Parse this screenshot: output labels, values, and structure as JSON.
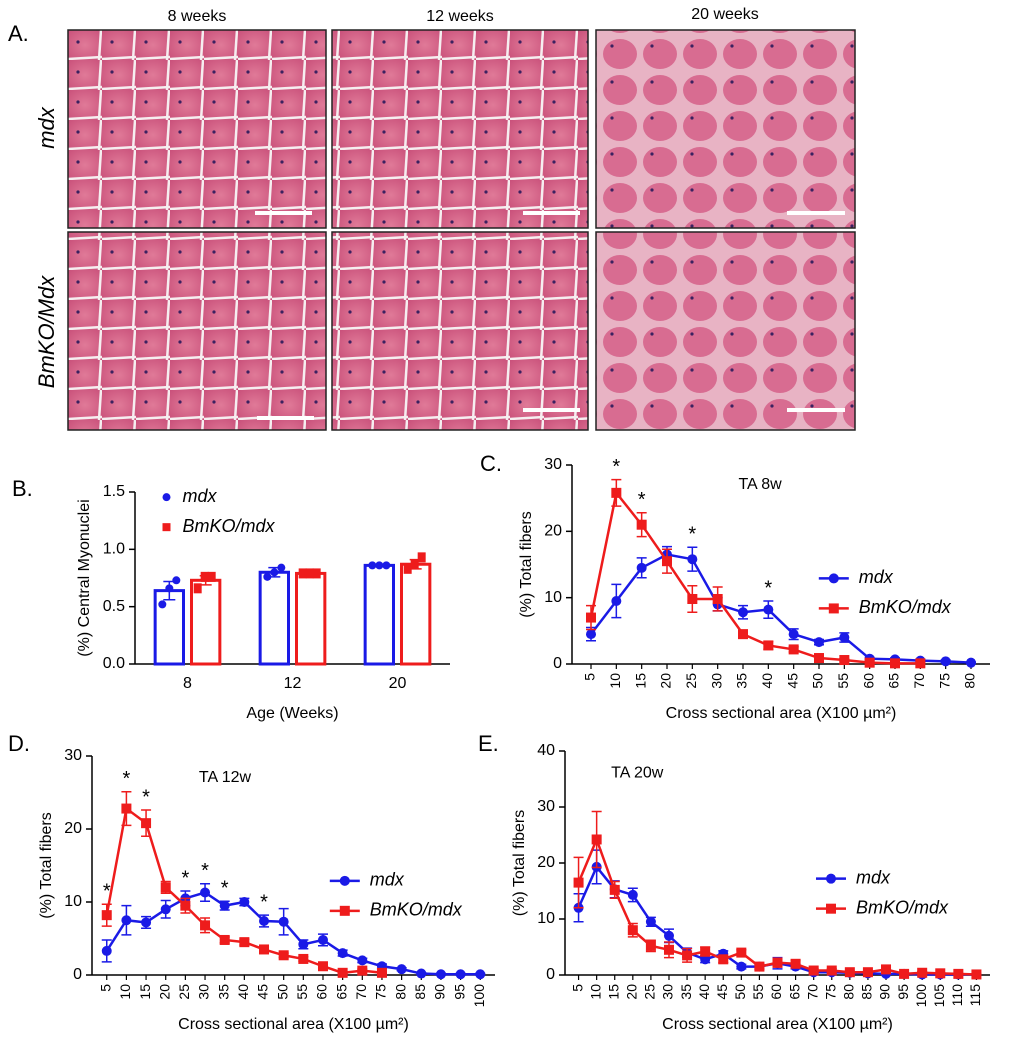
{
  "panel_a": {
    "label": "A.",
    "columns": [
      "8 weeks",
      "12 weeks",
      "20 weeks"
    ],
    "rows": [
      "mdx",
      "BmKO/Mdx"
    ]
  },
  "chart_data": [
    {
      "label": "B.",
      "type": "bar",
      "categories": [
        "8",
        "12",
        "20"
      ],
      "xlabel": "Age (Weeks)",
      "ylabel": "(%) Central Myonuclei",
      "ylim": [
        0,
        1.5
      ],
      "yticks": [
        {
          "value": 0,
          "label": "0.0"
        },
        0.5,
        {
          "value": 1,
          "label": "1.0"
        },
        1.5
      ],
      "legend": "upper left",
      "series": [
        {
          "name": "mdx",
          "color": "#1a1ae6",
          "marker": "circle",
          "values": [
            0.64,
            0.8,
            0.86
          ],
          "errors": [
            0.08,
            0.04,
            0.01
          ],
          "points": [
            [
              0.52,
              0.66,
              0.73
            ],
            [
              0.76,
              0.8,
              0.84
            ],
            [
              0.86,
              0.86,
              0.86
            ]
          ]
        },
        {
          "name": "BmKO/mdx",
          "color": "#ee1c1c",
          "marker": "square",
          "values": [
            0.73,
            0.79,
            0.87
          ],
          "errors": [
            0.04,
            0.01,
            0.04
          ],
          "points": [
            [
              0.66,
              0.76,
              0.76
            ],
            [
              0.79,
              0.79,
              0.79
            ],
            [
              0.83,
              0.87,
              0.93
            ]
          ]
        }
      ]
    },
    {
      "label": "C.",
      "type": "line",
      "title": "TA 8w",
      "xlabel": "Cross sectional area (X100 µm²)",
      "ylabel": "(%) Total fibers",
      "categories": [
        "5",
        "10",
        "15",
        "20",
        "25",
        "30",
        "35",
        "40",
        "45",
        "50",
        "55",
        "60",
        "65",
        "70",
        "75",
        "80"
      ],
      "ylim": [
        0,
        30
      ],
      "yticks": [
        0,
        10,
        20,
        30
      ],
      "legend": "center right",
      "series": [
        {
          "name": "mdx",
          "color": "#1a1ae6",
          "marker": "circle",
          "values": [
            4.5,
            9.5,
            14.5,
            16.5,
            15.8,
            9,
            7.8,
            8.2,
            4.5,
            3.3,
            4,
            0.8,
            0.7,
            0.5,
            0.4,
            0.2
          ],
          "errors": [
            1,
            2.5,
            1.5,
            1.2,
            1.8,
            1,
            1,
            1.3,
            0.8,
            0.4,
            0.7,
            0.2,
            0.2,
            0.2,
            0.2,
            0.1
          ]
        },
        {
          "name": "BmKO/mdx",
          "color": "#ee1c1c",
          "marker": "square",
          "values": [
            7,
            25.8,
            21,
            15.5,
            9.8,
            9.8,
            4.5,
            2.8,
            2.2,
            0.9,
            0.6,
            0.2,
            0.1,
            0.1,
            null,
            null
          ],
          "errors": [
            1.8,
            2,
            1.8,
            1.8,
            2,
            1.8,
            0.6,
            0.6,
            0.4,
            0.2,
            0.2,
            0.1,
            0.1,
            0.1,
            null,
            null
          ]
        }
      ],
      "annotations": [
        {
          "text": "*",
          "category": "10"
        },
        {
          "text": "*",
          "category": "15"
        },
        {
          "text": "*",
          "category": "25"
        },
        {
          "text": "*",
          "category": "40"
        }
      ]
    },
    {
      "label": "D.",
      "type": "line",
      "title": "TA 12w",
      "xlabel": "Cross sectional area (X100 µm²)",
      "ylabel": "(%) Total fibers",
      "categories": [
        "5",
        "10",
        "15",
        "20",
        "25",
        "30",
        "35",
        "40",
        "45",
        "50",
        "55",
        "60",
        "65",
        "70",
        "75",
        "80",
        "85",
        "90",
        "95",
        "100"
      ],
      "ylim": [
        0,
        30
      ],
      "yticks": [
        0,
        10,
        20,
        30
      ],
      "legend": "center right",
      "series": [
        {
          "name": "mdx",
          "color": "#1a1ae6",
          "marker": "circle",
          "values": [
            3.3,
            7.5,
            7.2,
            9,
            10.5,
            11.3,
            9.5,
            10,
            7.4,
            7.3,
            4.2,
            4.8,
            3,
            2,
            1.2,
            0.8,
            0.2,
            0.1,
            0.1,
            0.1
          ],
          "errors": [
            1.5,
            2,
            0.8,
            1.2,
            1,
            1.2,
            0.6,
            0.5,
            0.8,
            1.8,
            0.6,
            0.8,
            0.4,
            0.3,
            0.3,
            0.2,
            0.1,
            0.1,
            0.1,
            0.1
          ]
        },
        {
          "name": "BmKO/mdx",
          "color": "#ee1c1c",
          "marker": "square",
          "values": [
            8.2,
            22.8,
            20.8,
            12,
            9.5,
            6.8,
            4.8,
            4.5,
            3.5,
            2.7,
            2.2,
            1.2,
            0.3,
            0.6,
            0.3,
            null,
            null,
            null,
            null,
            null
          ],
          "errors": [
            1.5,
            2.3,
            1.8,
            0.8,
            1,
            1,
            0.4,
            0.4,
            0.3,
            0.3,
            0.3,
            0.2,
            0.1,
            0.2,
            0.1,
            null,
            null,
            null,
            null,
            null
          ]
        }
      ],
      "annotations": [
        {
          "text": "*",
          "category": "5"
        },
        {
          "text": "*",
          "category": "10"
        },
        {
          "text": "*",
          "category": "15"
        },
        {
          "text": "*",
          "category": "25"
        },
        {
          "text": "*",
          "category": "30"
        },
        {
          "text": "*",
          "category": "35"
        },
        {
          "text": "*",
          "category": "45"
        }
      ]
    },
    {
      "label": "E.",
      "type": "line",
      "title": "TA 20w",
      "xlabel": "Cross sectional area (X100 µm²)",
      "ylabel": "(%) Total fibers",
      "categories": [
        "5",
        "10",
        "15",
        "20",
        "25",
        "30",
        "35",
        "40",
        "45",
        "50",
        "55",
        "60",
        "65",
        "70",
        "75",
        "80",
        "85",
        "90",
        "95",
        "100",
        "105",
        "110",
        "115"
      ],
      "ylim": [
        0,
        40
      ],
      "yticks": [
        0,
        10,
        20,
        30,
        40
      ],
      "legend": "center right",
      "series": [
        {
          "name": "mdx",
          "color": "#1a1ae6",
          "marker": "circle",
          "values": [
            12,
            19.3,
            15.3,
            14.3,
            9.5,
            7,
            4,
            2.8,
            3.8,
            1.5,
            1.5,
            2.1,
            1.5,
            0.5,
            0.5,
            0.4,
            0.3,
            0.2,
            0.2,
            0.1,
            0.1,
            0.1,
            0.1
          ],
          "errors": [
            2.5,
            3,
            1.5,
            1.2,
            0.8,
            1.2,
            0.8,
            0.6,
            0.5,
            0.4,
            0.5,
            1,
            0.4,
            0.2,
            0.2,
            0.2,
            0.1,
            0.1,
            0.1,
            0.1,
            0.1,
            0.1,
            0.1
          ]
        },
        {
          "name": "BmKO/mdx",
          "color": "#ee1c1c",
          "marker": "square",
          "values": [
            16.5,
            24.2,
            15.2,
            8,
            5.2,
            4.5,
            3.5,
            4.2,
            2.8,
            4,
            1.5,
            2.2,
            2,
            0.8,
            0.8,
            0.5,
            0.5,
            1,
            0.2,
            0.4,
            0.3,
            0.2,
            0.1
          ],
          "errors": [
            4.5,
            5,
            1.5,
            1.2,
            1,
            1.4,
            1.2,
            0.8,
            0.6,
            0.5,
            0.4,
            0.8,
            0.6,
            0.3,
            0.3,
            0.2,
            0.2,
            0.3,
            0.1,
            0.2,
            0.1,
            0.1,
            0.1
          ]
        }
      ]
    }
  ]
}
